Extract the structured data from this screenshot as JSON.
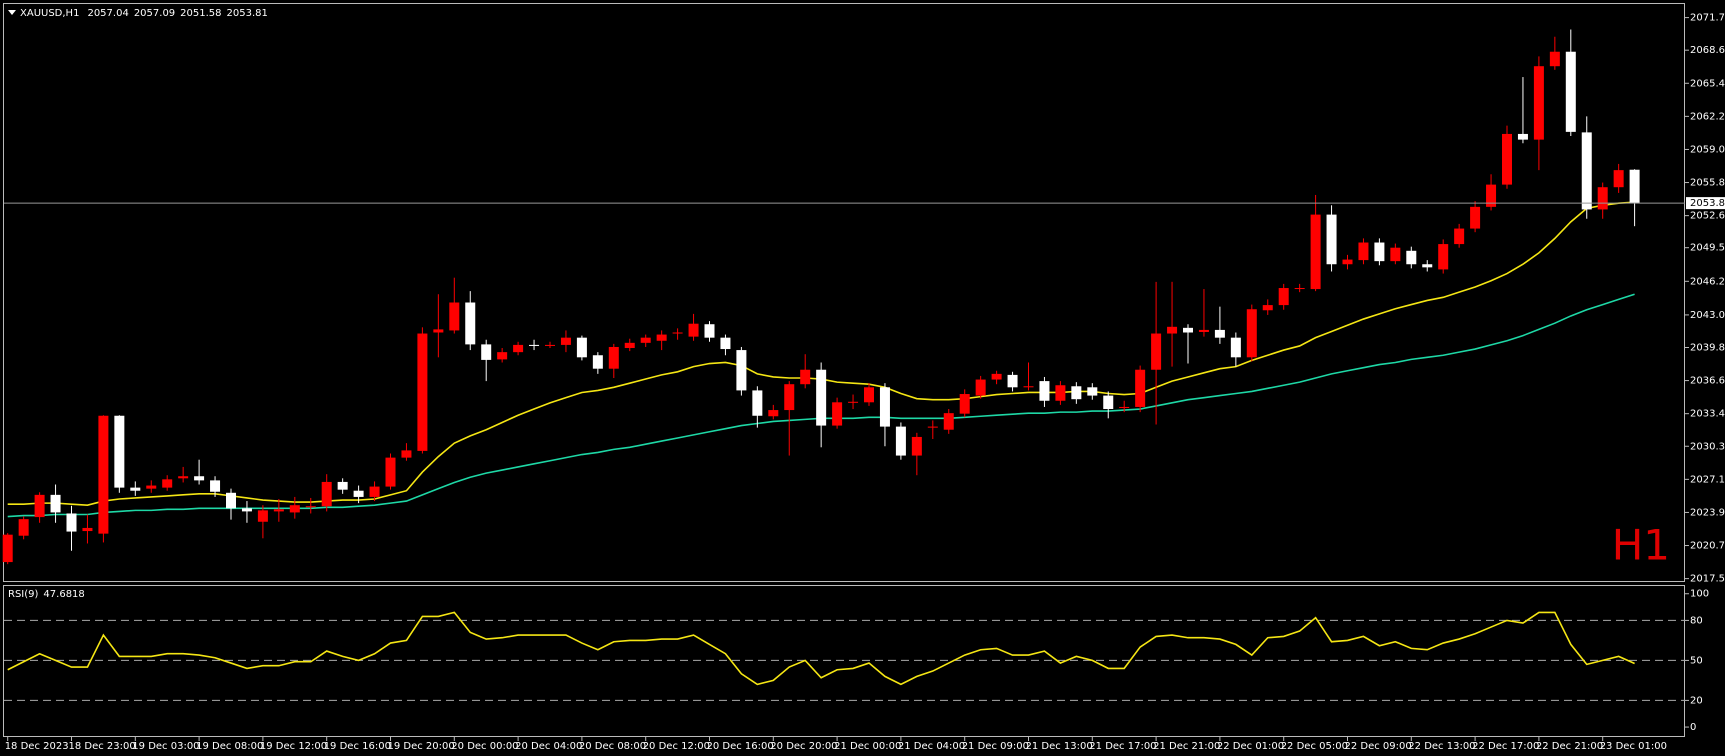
{
  "chart_data": [
    {
      "type": "candlestick",
      "title": "XAUUSD,H1",
      "annotation": "H1",
      "categories": [
        "18 Dec 2023",
        null,
        null,
        null,
        "18 Dec 23:00",
        null,
        null,
        null,
        "19 Dec 03:00",
        null,
        null,
        null,
        "19 Dec 08:00",
        null,
        null,
        null,
        "19 Dec 12:00",
        null,
        null,
        null,
        "19 Dec 16:00",
        null,
        null,
        null,
        "19 Dec 20:00",
        null,
        null,
        null,
        "20 Dec 00:00",
        null,
        null,
        null,
        "20 Dec 04:00",
        null,
        null,
        null,
        "20 Dec 08:00",
        null,
        null,
        null,
        "20 Dec 12:00",
        null,
        null,
        null,
        "20 Dec 16:00",
        null,
        null,
        null,
        "20 Dec 20:00",
        null,
        null,
        null,
        "21 Dec 00:00",
        null,
        null,
        null,
        "21 Dec 04:00",
        null,
        null,
        null,
        "21 Dec 09:00",
        null,
        null,
        null,
        "21 Dec 13:00",
        null,
        null,
        null,
        "21 Dec 17:00",
        null,
        null,
        null,
        "21 Dec 21:00",
        null,
        null,
        null,
        "22 Dec 01:00",
        null,
        null,
        null,
        "22 Dec 05:00",
        null,
        null,
        null,
        "22 Dec 09:00",
        null,
        null,
        null,
        "22 Dec 13:00",
        null,
        null,
        null,
        "22 Dec 17:00",
        null,
        null,
        null,
        "22 Dec 21:00",
        null,
        null,
        null,
        "23 Dec 01:00",
        null,
        null
      ],
      "open": [
        2019.1,
        2021.65,
        2023.45,
        2025.6,
        2023.8,
        2022.1,
        2021.85,
        2033.25,
        2026.3,
        2026.2,
        2026.3,
        2027.2,
        2027.4,
        2027.0,
        2025.8,
        2024.3,
        2023.0,
        2024.0,
        2023.9,
        2024.4,
        2024.5,
        2026.85,
        2026.0,
        2025.4,
        2026.4,
        2029.2,
        2029.85,
        2041.3,
        2041.5,
        2044.2,
        2040.15,
        2038.7,
        2039.4,
        2040.1,
        2040.0,
        2040.1,
        2040.8,
        2039.1,
        2037.8,
        2039.8,
        2040.3,
        2040.5,
        2041.2,
        2040.9,
        2042.1,
        2040.8,
        2039.6,
        2035.7,
        2033.2,
        2033.8,
        2036.3,
        2037.7,
        2032.3,
        2034.5,
        2034.55,
        2036.0,
        2032.2,
        2029.4,
        2032.1,
        2031.9,
        2033.45,
        2035.2,
        2036.75,
        2037.2,
        2036.0,
        2036.6,
        2034.7,
        2036.1,
        2036.0,
        2035.2,
        2034.0,
        2034.1,
        2037.7,
        2041.2,
        2041.75,
        2041.35,
        2041.55,
        2040.8,
        2038.9,
        2043.45,
        2043.95,
        2045.55,
        2045.5,
        2052.7,
        2047.9,
        2048.3,
        2050.0,
        2048.2,
        2049.2,
        2047.9,
        2047.4,
        2049.85,
        2051.35,
        2053.45,
        2055.6,
        2060.5,
        2059.95,
        2067.05,
        2068.45,
        2060.65,
        2053.2,
        2055.35,
        2057.04
      ],
      "high": [
        2021.9,
        2023.5,
        2025.85,
        2026.6,
        2024.55,
        2023.7,
        2033.3,
        2033.3,
        2026.9,
        2027.0,
        2027.5,
        2028.3,
        2029.0,
        2027.4,
        2026.2,
        2025.0,
        2024.6,
        2025.2,
        2025.4,
        2025.3,
        2027.6,
        2027.2,
        2026.5,
        2026.9,
        2029.6,
        2030.6,
        2041.8,
        2045.0,
        2046.6,
        2045.3,
        2040.6,
        2039.8,
        2040.4,
        2040.6,
        2040.4,
        2041.5,
        2041.0,
        2039.4,
        2040.2,
        2040.7,
        2041.1,
        2041.5,
        2041.7,
        2043.1,
        2042.4,
        2041.1,
        2039.9,
        2036.1,
        2034.3,
        2036.6,
        2039.2,
        2038.4,
        2035.0,
        2035.3,
        2036.4,
        2036.4,
        2032.6,
        2031.6,
        2032.8,
        2033.9,
        2035.8,
        2037.1,
        2037.6,
        2037.5,
        2038.4,
        2037.0,
        2036.6,
        2036.5,
        2036.4,
        2035.6,
        2034.7,
        2038.1,
        2046.2,
        2046.2,
        2042.1,
        2045.5,
        2043.8,
        2041.3,
        2044.0,
        2044.5,
        2046.0,
        2046.0,
        2054.6,
        2053.6,
        2048.8,
        2050.4,
        2050.4,
        2049.9,
        2049.6,
        2048.3,
        2050.3,
        2051.8,
        2054.0,
        2056.6,
        2061.3,
        2066.0,
        2068.0,
        2069.9,
        2070.6,
        2062.2,
        2055.8,
        2057.6,
        2057.09
      ],
      "low": [
        2018.9,
        2021.3,
        2022.9,
        2022.9,
        2020.2,
        2020.9,
        2021.0,
        2025.8,
        2025.5,
        2025.8,
        2026.0,
        2026.8,
        2026.6,
        2025.4,
        2023.2,
        2022.9,
        2021.4,
        2023.0,
        2023.3,
        2023.8,
        2024.0,
        2025.7,
        2024.8,
        2025.0,
        2026.1,
        2028.9,
        2029.6,
        2038.9,
        2041.2,
        2039.6,
        2036.6,
        2038.4,
        2039.1,
        2039.6,
        2039.8,
        2039.4,
        2038.6,
        2037.3,
        2036.9,
        2039.5,
        2039.9,
        2039.6,
        2040.6,
        2040.5,
        2040.4,
        2039.1,
        2035.2,
        2032.1,
        2032.9,
        2029.4,
        2035.9,
        2030.2,
        2032.0,
        2033.9,
        2034.2,
        2030.3,
        2029.0,
        2027.5,
        2031.0,
        2031.5,
        2033.1,
        2034.9,
        2036.3,
        2035.6,
        2035.7,
        2034.1,
        2034.3,
        2034.4,
        2034.8,
        2033.0,
        2033.6,
        2033.6,
        2032.4,
        2038.0,
        2038.3,
        2040.9,
        2040.2,
        2038.0,
        2038.5,
        2043.0,
        2043.5,
        2045.2,
        2045.3,
        2047.2,
        2047.4,
        2047.9,
        2047.8,
        2047.9,
        2047.5,
        2047.2,
        2047.0,
        2049.5,
        2051.0,
        2053.1,
        2055.2,
        2059.6,
        2057.0,
        2066.7,
        2060.3,
        2052.3,
        2052.3,
        2054.8,
        2051.58
      ],
      "close": [
        2021.75,
        2023.25,
        2025.6,
        2023.9,
        2022.05,
        2022.4,
        2033.25,
        2026.3,
        2026.0,
        2026.5,
        2027.1,
        2027.4,
        2027.0,
        2025.9,
        2024.3,
        2024.0,
        2024.1,
        2024.2,
        2024.6,
        2024.5,
        2026.85,
        2026.1,
        2025.4,
        2026.4,
        2029.2,
        2029.9,
        2041.2,
        2041.6,
        2044.2,
        2040.15,
        2038.65,
        2039.4,
        2040.1,
        2040.0,
        2040.1,
        2040.8,
        2038.9,
        2037.8,
        2039.9,
        2040.3,
        2040.8,
        2041.1,
        2041.3,
        2042.15,
        2040.8,
        2039.7,
        2035.7,
        2033.25,
        2033.8,
        2036.3,
        2037.7,
        2032.3,
        2034.55,
        2034.6,
        2036.0,
        2032.2,
        2029.4,
        2031.2,
        2032.2,
        2033.5,
        2035.35,
        2036.75,
        2037.3,
        2036.0,
        2036.1,
        2034.7,
        2036.2,
        2034.85,
        2035.2,
        2033.9,
        2034.1,
        2037.7,
        2041.2,
        2041.85,
        2041.3,
        2041.55,
        2040.8,
        2038.9,
        2043.55,
        2043.95,
        2045.6,
        2045.6,
        2052.7,
        2047.9,
        2048.35,
        2050.0,
        2048.2,
        2049.5,
        2047.9,
        2047.6,
        2049.85,
        2051.35,
        2053.45,
        2055.6,
        2060.5,
        2059.95,
        2067.05,
        2068.45,
        2060.7,
        2053.2,
        2055.35,
        2057.0,
        2053.81
      ],
      "up_color": "#ff0000",
      "down_color": "#ffffff",
      "overlays": [
        {
          "color": "#f5e614",
          "values": [
            2024.7,
            2024.7,
            2024.8,
            2024.8,
            2024.7,
            2024.6,
            2025.0,
            2025.2,
            2025.3,
            2025.4,
            2025.5,
            2025.6,
            2025.7,
            2025.7,
            2025.5,
            2025.3,
            2025.1,
            2025.0,
            2024.9,
            2024.9,
            2025.0,
            2025.1,
            2025.1,
            2025.2,
            2025.6,
            2026.0,
            2027.8,
            2029.3,
            2030.6,
            2031.3,
            2031.9,
            2032.6,
            2033.3,
            2033.9,
            2034.5,
            2035.0,
            2035.5,
            2035.7,
            2036.0,
            2036.4,
            2036.8,
            2037.2,
            2037.5,
            2038.0,
            2038.3,
            2038.4,
            2038.1,
            2037.3,
            2037.0,
            2036.9,
            2036.9,
            2036.8,
            2036.5,
            2036.4,
            2036.3,
            2036.0,
            2035.4,
            2034.9,
            2034.8,
            2034.8,
            2034.9,
            2035.1,
            2035.3,
            2035.4,
            2035.5,
            2035.5,
            2035.5,
            2035.6,
            2035.6,
            2035.4,
            2035.3,
            2035.4,
            2036.0,
            2036.6,
            2037.0,
            2037.4,
            2037.8,
            2038.0,
            2038.6,
            2039.1,
            2039.6,
            2040.0,
            2040.8,
            2041.4,
            2042.0,
            2042.6,
            2043.1,
            2043.6,
            2044.0,
            2044.4,
            2044.7,
            2045.2,
            2045.7,
            2046.3,
            2047.0,
            2047.9,
            2049.0,
            2050.4,
            2052.0,
            2053.3,
            2053.6,
            2053.8,
            2053.9
          ]
        },
        {
          "color": "#1ed8a6",
          "values": [
            2023.5,
            2023.6,
            2023.6,
            2023.7,
            2023.7,
            2023.7,
            2023.9,
            2024.0,
            2024.1,
            2024.1,
            2024.2,
            2024.2,
            2024.3,
            2024.3,
            2024.3,
            2024.3,
            2024.3,
            2024.3,
            2024.3,
            2024.3,
            2024.4,
            2024.4,
            2024.5,
            2024.6,
            2024.8,
            2025.0,
            2025.6,
            2026.2,
            2026.8,
            2027.3,
            2027.7,
            2028.0,
            2028.3,
            2028.6,
            2028.9,
            2029.2,
            2029.5,
            2029.7,
            2030.0,
            2030.2,
            2030.5,
            2030.8,
            2031.1,
            2031.4,
            2031.7,
            2032.0,
            2032.3,
            2032.5,
            2032.7,
            2032.8,
            2032.9,
            2033.0,
            2033.0,
            2033.0,
            2033.1,
            2033.1,
            2033.0,
            2033.0,
            2033.0,
            2033.0,
            2033.1,
            2033.2,
            2033.3,
            2033.4,
            2033.5,
            2033.5,
            2033.6,
            2033.6,
            2033.7,
            2033.7,
            2033.8,
            2033.9,
            2034.2,
            2034.5,
            2034.8,
            2035.0,
            2035.2,
            2035.4,
            2035.6,
            2035.9,
            2036.2,
            2036.5,
            2036.9,
            2037.3,
            2037.6,
            2037.9,
            2038.2,
            2038.4,
            2038.7,
            2038.9,
            2039.1,
            2039.4,
            2039.7,
            2040.1,
            2040.5,
            2041.0,
            2041.6,
            2042.2,
            2042.9,
            2043.5,
            2044.0,
            2044.5,
            2045.0
          ]
        }
      ],
      "ylim": [
        2017.27,
        2072.92
      ],
      "yticks": [
        2071.75,
        {
          "value": 2068.6,
          "label": "2068.60"
        },
        {
          "value": 2065.4,
          "label": "2065.40"
        },
        {
          "value": 2062.2,
          "label": "2062.20"
        },
        {
          "value": 2059.0,
          "label": "2059.00"
        },
        {
          "value": 2055.8,
          "label": "2055.80"
        },
        {
          "value": 2052.6,
          "label": "2052.60"
        },
        {
          "value": 2049.5,
          "label": "2049.50"
        },
        2046.25,
        {
          "value": 2043.0,
          "label": "2043.00"
        },
        2039.85,
        2036.65,
        2033.45,
        {
          "value": 2030.3,
          "label": "2030.30"
        },
        {
          "value": 2027.1,
          "label": "2027.10"
        },
        {
          "value": 2023.9,
          "label": "2023.90"
        },
        {
          "value": 2020.7,
          "label": "2020.70"
        },
        {
          "value": 2017.5,
          "label": "2017.50"
        }
      ]
    },
    {
      "type": "line",
      "title": "RSI(9)",
      "color": "#f5e614",
      "values": [
        43,
        49,
        55,
        50,
        45,
        45,
        69,
        53,
        53,
        53,
        55,
        55,
        54,
        52,
        48,
        44,
        46,
        46,
        49,
        49,
        57,
        53,
        50,
        55,
        63,
        65,
        83,
        83,
        86,
        71,
        66,
        67,
        69,
        69,
        69,
        69,
        63,
        58,
        64,
        65,
        65,
        66,
        66,
        69,
        62,
        55,
        40,
        32,
        35,
        45,
        50,
        37,
        43,
        44,
        48,
        38,
        32,
        38,
        42,
        48,
        54,
        58,
        59,
        54,
        54,
        57,
        48,
        53,
        50,
        44,
        44,
        60,
        68,
        69,
        67,
        67,
        66,
        62,
        54,
        67,
        68,
        72,
        82,
        64,
        65,
        68,
        61,
        64,
        59,
        58,
        63,
        66,
        70,
        75,
        80,
        78,
        86,
        86,
        62,
        47,
        50,
        53,
        47.6818
      ],
      "ylim": [
        -6.7,
        105.8
      ],
      "yticks": [
        0,
        20,
        50,
        80,
        100
      ],
      "levels": [
        20,
        50,
        80
      ]
    }
  ]
}
